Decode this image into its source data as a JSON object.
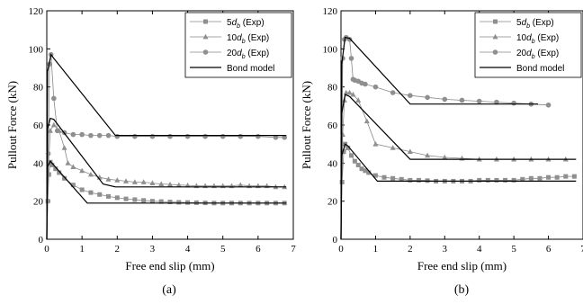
{
  "colors": {
    "exp_series": "#888888",
    "marker": "#8f8f8f",
    "model": "#000000",
    "axes": "#000000"
  },
  "chart_data": [
    {
      "type": "line",
      "caption": "(a)",
      "xlabel": "Free end slip (mm)",
      "ylabel": "Pullout Force (kN)",
      "xlim": [
        0,
        7
      ],
      "ylim": [
        0,
        120
      ],
      "xticks": [
        "0",
        "1",
        "2",
        "3",
        "4",
        "5",
        "6",
        "7"
      ],
      "yticks": [
        "0",
        "20",
        "40",
        "60",
        "80",
        "100",
        "120"
      ],
      "grid": false,
      "legend_position": "top-right",
      "series": [
        {
          "name": "5d_b (Exp)",
          "label_prefix": "5",
          "label_sub": "b",
          "label_suffix": " (Exp)",
          "marker": "square",
          "points": [
            [
              0,
              0
            ],
            [
              0.03,
              20
            ],
            [
              0.06,
              34
            ],
            [
              0.1,
              40.5
            ],
            [
              0.15,
              39
            ],
            [
              0.25,
              37
            ],
            [
              0.35,
              35
            ],
            [
              0.5,
              32
            ],
            [
              0.75,
              28.5
            ],
            [
              1.0,
              26
            ],
            [
              1.25,
              24.5
            ],
            [
              1.5,
              23.5
            ],
            [
              1.75,
              22.5
            ],
            [
              2.0,
              21.8
            ],
            [
              2.25,
              21.2
            ],
            [
              2.5,
              20.8
            ],
            [
              2.75,
              20.4
            ],
            [
              3.0,
              20
            ],
            [
              3.25,
              19.8
            ],
            [
              3.5,
              19.6
            ],
            [
              3.75,
              19.4
            ],
            [
              4.0,
              19.3
            ],
            [
              4.25,
              19.2
            ],
            [
              4.5,
              19.1
            ],
            [
              4.75,
              19
            ],
            [
              5.0,
              19
            ],
            [
              5.25,
              19
            ],
            [
              5.5,
              19
            ],
            [
              5.75,
              19
            ],
            [
              6.0,
              19
            ],
            [
              6.25,
              19
            ],
            [
              6.5,
              19
            ],
            [
              6.75,
              19
            ]
          ]
        },
        {
          "name": "10d_b (Exp)",
          "label_prefix": "10",
          "label_sub": "b",
          "label_suffix": " (Exp)",
          "marker": "triangle",
          "points": [
            [
              0,
              0
            ],
            [
              0.05,
              40
            ],
            [
              0.1,
              57
            ],
            [
              0.2,
              60
            ],
            [
              0.35,
              57
            ],
            [
              0.5,
              48
            ],
            [
              0.6,
              40
            ],
            [
              0.75,
              38
            ],
            [
              1.0,
              36
            ],
            [
              1.25,
              34
            ],
            [
              1.5,
              32.5
            ],
            [
              1.75,
              31.5
            ],
            [
              2.0,
              31
            ],
            [
              2.25,
              30.5
            ],
            [
              2.5,
              30
            ],
            [
              2.75,
              30
            ],
            [
              3.0,
              29.5
            ],
            [
              3.25,
              29
            ],
            [
              3.5,
              28.8
            ],
            [
              3.75,
              28.5
            ],
            [
              4.0,
              28.3
            ],
            [
              4.25,
              28
            ],
            [
              4.5,
              28
            ],
            [
              4.75,
              28
            ],
            [
              5.0,
              28
            ],
            [
              5.25,
              28
            ],
            [
              5.5,
              28.5
            ],
            [
              5.75,
              28
            ],
            [
              6.0,
              28
            ],
            [
              6.25,
              28
            ],
            [
              6.5,
              27.5
            ],
            [
              6.75,
              27.5
            ]
          ]
        },
        {
          "name": "20d_b (Exp)",
          "label_prefix": "20",
          "label_sub": "b",
          "label_suffix": " (Exp)",
          "marker": "circle",
          "points": [
            [
              0,
              0
            ],
            [
              0.04,
              45
            ],
            [
              0.08,
              92
            ],
            [
              0.12,
              97
            ],
            [
              0.2,
              74
            ],
            [
              0.3,
              57
            ],
            [
              0.5,
              56
            ],
            [
              0.75,
              55
            ],
            [
              1.0,
              55
            ],
            [
              1.25,
              54.5
            ],
            [
              1.5,
              54.5
            ],
            [
              1.75,
              54.5
            ],
            [
              2.0,
              54
            ],
            [
              2.5,
              54
            ],
            [
              3.0,
              54
            ],
            [
              3.5,
              54
            ],
            [
              4.0,
              54
            ],
            [
              4.5,
              54
            ],
            [
              5.0,
              54
            ],
            [
              5.5,
              54
            ],
            [
              6.0,
              54
            ],
            [
              6.5,
              53.5
            ],
            [
              6.75,
              53.5
            ]
          ]
        },
        {
          "name": "Bond model",
          "marker": "none",
          "segments": [
            [
              [
                0,
                0
              ],
              [
                0.02,
                38
              ],
              [
                0.1,
                41
              ],
              [
                1.15,
                19
              ],
              [
                6.8,
                19
              ]
            ],
            [
              [
                0,
                0
              ],
              [
                0.02,
                58
              ],
              [
                0.1,
                63.5
              ],
              [
                0.2,
                63
              ],
              [
                1.6,
                29
              ],
              [
                1.95,
                27.5
              ],
              [
                6.8,
                27.5
              ]
            ],
            [
              [
                0,
                0
              ],
              [
                0.02,
                88
              ],
              [
                0.12,
                97
              ],
              [
                0.2,
                95
              ],
              [
                1.95,
                54.5
              ],
              [
                6.8,
                54.5
              ]
            ]
          ]
        }
      ]
    },
    {
      "type": "line",
      "caption": "(b)",
      "xlabel": "Free end slip (mm)",
      "ylabel": "Pullout Force (kN)",
      "xlim": [
        0,
        7
      ],
      "ylim": [
        0,
        120
      ],
      "xticks": [
        "0",
        "1",
        "2",
        "3",
        "4",
        "5",
        "6",
        "7"
      ],
      "yticks": [
        "0",
        "20",
        "40",
        "60",
        "80",
        "100",
        "120"
      ],
      "grid": false,
      "legend_position": "top-right",
      "series": [
        {
          "name": "5d_b (Exp)",
          "label_prefix": "5",
          "label_sub": "b",
          "label_suffix": " (Exp)",
          "marker": "square",
          "points": [
            [
              0,
              0
            ],
            [
              0.03,
              30
            ],
            [
              0.08,
              46
            ],
            [
              0.12,
              50
            ],
            [
              0.2,
              48
            ],
            [
              0.3,
              44
            ],
            [
              0.4,
              41
            ],
            [
              0.5,
              39
            ],
            [
              0.6,
              37
            ],
            [
              0.7,
              36
            ],
            [
              0.8,
              35
            ],
            [
              1.0,
              33.5
            ],
            [
              1.25,
              32.5
            ],
            [
              1.5,
              32
            ],
            [
              1.75,
              31.5
            ],
            [
              2.0,
              31
            ],
            [
              2.25,
              31
            ],
            [
              2.5,
              30.8
            ],
            [
              2.75,
              30.5
            ],
            [
              3.0,
              30.5
            ],
            [
              3.25,
              30.5
            ],
            [
              3.5,
              30.5
            ],
            [
              3.75,
              30.5
            ],
            [
              4.0,
              31
            ],
            [
              4.25,
              31
            ],
            [
              4.5,
              31
            ],
            [
              4.75,
              31
            ],
            [
              5.0,
              31
            ],
            [
              5.25,
              31.5
            ],
            [
              5.5,
              32
            ],
            [
              5.75,
              32
            ],
            [
              6.0,
              32.5
            ],
            [
              6.25,
              32.5
            ],
            [
              6.5,
              33
            ],
            [
              6.75,
              33
            ]
          ]
        },
        {
          "name": "10d_b (Exp)",
          "label_prefix": "10",
          "label_sub": "b",
          "label_suffix": " (Exp)",
          "marker": "triangle",
          "points": [
            [
              0,
              0
            ],
            [
              0.05,
              55
            ],
            [
              0.1,
              73
            ],
            [
              0.15,
              77
            ],
            [
              0.25,
              77
            ],
            [
              0.35,
              76
            ],
            [
              0.5,
              73
            ],
            [
              0.75,
              62
            ],
            [
              1.0,
              50
            ],
            [
              1.5,
              48
            ],
            [
              2.0,
              46
            ],
            [
              2.5,
              44
            ],
            [
              3.0,
              43
            ],
            [
              3.5,
              42.5
            ],
            [
              4.0,
              42
            ],
            [
              4.5,
              42
            ],
            [
              5.0,
              42
            ],
            [
              5.5,
              42
            ],
            [
              6.0,
              42
            ],
            [
              6.5,
              42
            ]
          ]
        },
        {
          "name": "20d_b (Exp)",
          "label_prefix": "20",
          "label_sub": "b",
          "label_suffix": " (Exp)",
          "marker": "circle",
          "points": [
            [
              0,
              0
            ],
            [
              0.05,
              95
            ],
            [
              0.1,
              105
            ],
            [
              0.15,
              106
            ],
            [
              0.25,
              105
            ],
            [
              0.3,
              95
            ],
            [
              0.35,
              84
            ],
            [
              0.4,
              83.5
            ],
            [
              0.5,
              83
            ],
            [
              0.6,
              82
            ],
            [
              0.7,
              81.5
            ],
            [
              1.0,
              80
            ],
            [
              1.5,
              77
            ],
            [
              2.0,
              75.5
            ],
            [
              2.5,
              74.5
            ],
            [
              3.0,
              73.5
            ],
            [
              3.5,
              73
            ],
            [
              4.0,
              72.5
            ],
            [
              4.5,
              72
            ],
            [
              5.0,
              71.5
            ],
            [
              5.5,
              71
            ],
            [
              6.0,
              70.5
            ]
          ]
        },
        {
          "name": "Bond model",
          "marker": "none",
          "segments": [
            [
              [
                0,
                0
              ],
              [
                0.02,
                44
              ],
              [
                0.12,
                50
              ],
              [
                0.2,
                49
              ],
              [
                1.05,
                30.5
              ],
              [
                6.8,
                30.5
              ]
            ],
            [
              [
                0,
                0
              ],
              [
                0.02,
                66
              ],
              [
                0.12,
                76
              ],
              [
                0.25,
                75
              ],
              [
                2.0,
                42
              ],
              [
                6.8,
                42
              ]
            ],
            [
              [
                0,
                0
              ],
              [
                0.02,
                92
              ],
              [
                0.12,
                106
              ],
              [
                0.25,
                105.5
              ],
              [
                2.0,
                71
              ],
              [
                5.7,
                71
              ]
            ]
          ]
        }
      ]
    }
  ]
}
